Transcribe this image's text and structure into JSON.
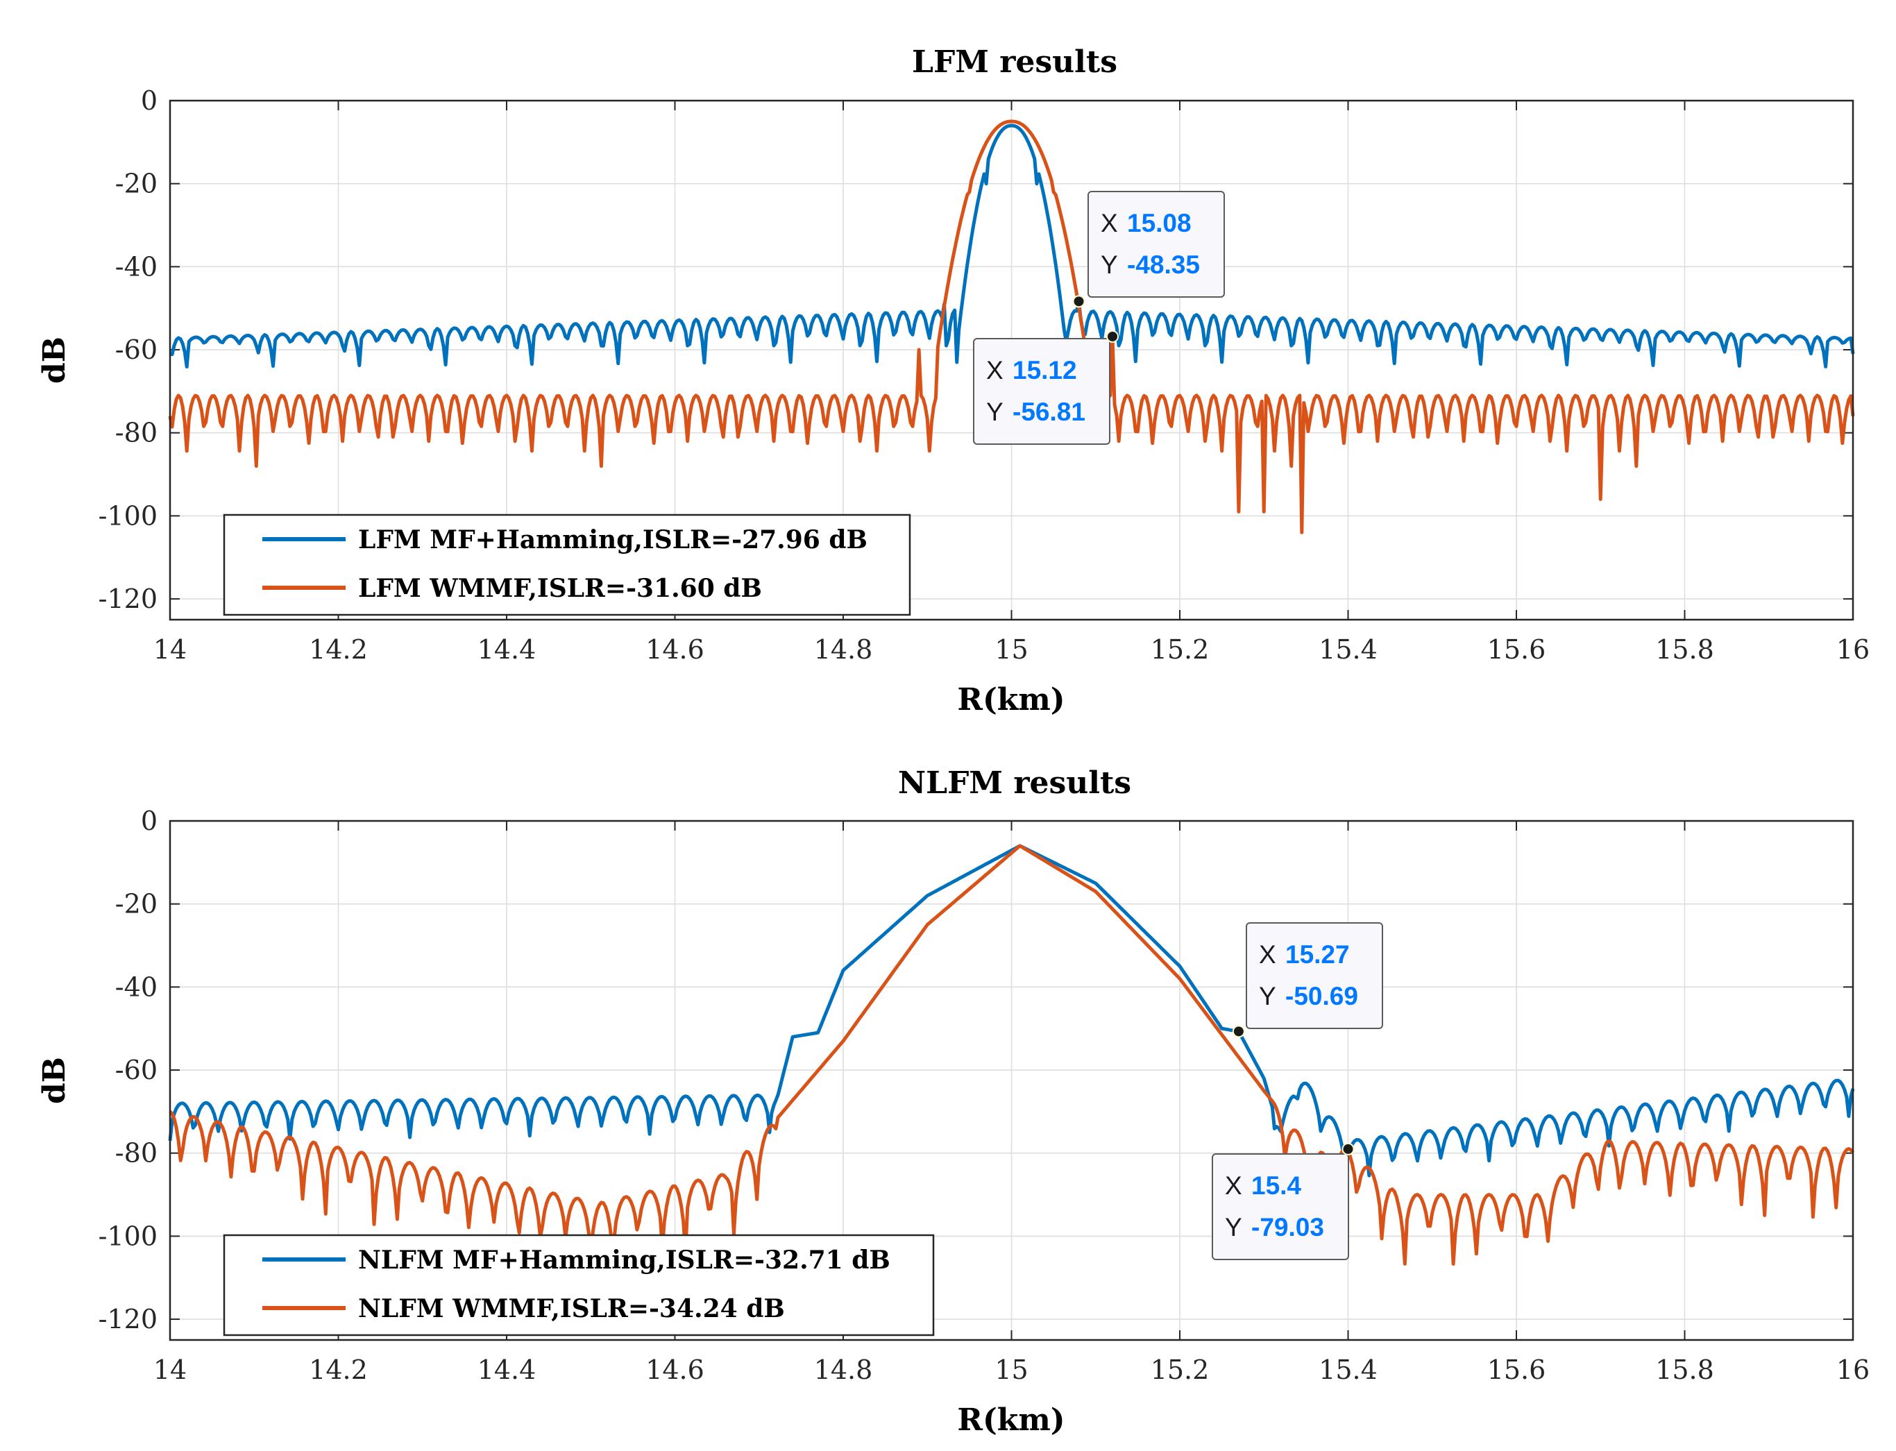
{
  "chart_data": [
    {
      "type": "line",
      "title": "LFM results",
      "xlabel": "R(km)",
      "ylabel": "dB",
      "xlim": [
        14,
        16
      ],
      "ylim": [
        -125,
        0
      ],
      "xticks": [
        "14",
        "14.2",
        "14.4",
        "14.6",
        "14.8",
        "15",
        "15.2",
        "15.4",
        "15.6",
        "15.8",
        "16"
      ],
      "yticks": [
        "0",
        "-20",
        "-40",
        "-60",
        "-80",
        "-100",
        "-120"
      ],
      "grid": true,
      "legend_position": "bottom-left",
      "series": [
        {
          "name": "LFM MF+Hamming,ISLR=-27.96 dB",
          "color": "#0072BD",
          "mainlobe": {
            "center": 15.0,
            "halfwidth": 0.063,
            "peak": -6,
            "edge": -56
          },
          "sidelobes": {
            "period": 0.0205,
            "base": -50,
            "depth": 9,
            "deepnull_every": 5,
            "deepnull_value": -66,
            "edge_falloff": 0.9
          },
          "points": [
            [
              14.0,
              -61
            ],
            [
              14.92,
              -49
            ],
            [
              14.935,
              -63
            ],
            [
              14.97,
              -20
            ],
            [
              15.0,
              -6
            ],
            [
              15.03,
              -20
            ],
            [
              15.065,
              -58
            ],
            [
              15.08,
              -48.35
            ],
            [
              16.0,
              -61
            ]
          ]
        },
        {
          "name": "LFM WMMF,ISLR=-31.60 dB",
          "color": "#D95319",
          "mainlobe": {
            "center": 15.0,
            "halfwidth": 0.088,
            "peak": -5,
            "edge": -60
          },
          "sidelobes": {
            "period": 0.0205,
            "base": -71,
            "depth": 11,
            "deepnull_every": 4,
            "deepnull_value": -88,
            "edge_falloff": 0.0
          },
          "points": [
            [
              14.0,
              -76
            ],
            [
              14.89,
              -60
            ],
            [
              14.95,
              -22
            ],
            [
              15.0,
              -5
            ],
            [
              15.05,
              -22
            ],
            [
              15.12,
              -56.81
            ],
            [
              15.27,
              -99
            ],
            [
              15.3,
              -99
            ],
            [
              15.345,
              -104
            ],
            [
              15.7,
              -96
            ],
            [
              16.0,
              -76
            ]
          ]
        }
      ],
      "annotations": [
        {
          "series": 0,
          "x_label": "X",
          "x_value": "15.08",
          "y_label": "Y",
          "y_value": "-48.35",
          "x": 15.08,
          "y": -48.35
        },
        {
          "series": 1,
          "x_label": "X",
          "x_value": "15.12",
          "y_label": "Y",
          "y_value": "-56.81",
          "x": 15.12,
          "y": -56.81
        }
      ]
    },
    {
      "type": "line",
      "title": "NLFM results",
      "xlabel": "R(km)",
      "ylabel": "dB",
      "xlim": [
        14,
        16
      ],
      "ylim": [
        -125,
        0
      ],
      "xticks": [
        "14",
        "14.2",
        "14.4",
        "14.6",
        "14.8",
        "15",
        "15.2",
        "15.4",
        "15.6",
        "15.8",
        "16"
      ],
      "yticks": [
        "0",
        "-20",
        "-40",
        "-60",
        "-80",
        "-100",
        "-120"
      ],
      "grid": true,
      "legend_position": "bottom-left",
      "series": [
        {
          "name": "NLFM MF+Hamming,ISLR=-32.71 dB",
          "color": "#0072BD",
          "points": [
            [
              14.0,
              -70
            ],
            [
              14.72,
              -68
            ],
            [
              14.74,
              -52
            ],
            [
              14.77,
              -51
            ],
            [
              14.8,
              -36
            ],
            [
              14.9,
              -18
            ],
            [
              15.01,
              -6
            ],
            [
              15.1,
              -15
            ],
            [
              15.2,
              -35
            ],
            [
              15.25,
              -50
            ],
            [
              15.27,
              -50.69
            ],
            [
              15.3,
              -62
            ],
            [
              15.32,
              -76
            ],
            [
              15.34,
              -62
            ],
            [
              15.4,
              -79.03
            ],
            [
              16.0,
              -64
            ]
          ]
        },
        {
          "name": "NLFM WMMF,ISLR=-34.24 dB",
          "color": "#D95319",
          "points": [
            [
              14.0,
              -70
            ],
            [
              14.51,
              -92
            ],
            [
              14.66,
              -85
            ],
            [
              14.72,
              -72
            ],
            [
              14.8,
              -53
            ],
            [
              14.9,
              -25
            ],
            [
              15.01,
              -6
            ],
            [
              15.1,
              -17
            ],
            [
              15.2,
              -38
            ],
            [
              15.3,
              -65
            ],
            [
              15.36,
              -80
            ],
            [
              15.4,
              -79
            ],
            [
              15.46,
              -90
            ],
            [
              15.63,
              -90
            ],
            [
              15.7,
              -77
            ],
            [
              16.0,
              -79
            ]
          ]
        }
      ],
      "annotations": [
        {
          "series": 0,
          "x_label": "X",
          "x_value": "15.27",
          "y_label": "Y",
          "y_value": "-50.69",
          "x": 15.27,
          "y": -50.69
        },
        {
          "series": 0,
          "x_label": "X",
          "x_value": "15.4",
          "y_label": "Y",
          "y_value": "-79.03",
          "x": 15.4,
          "y": -79.03
        }
      ]
    }
  ]
}
